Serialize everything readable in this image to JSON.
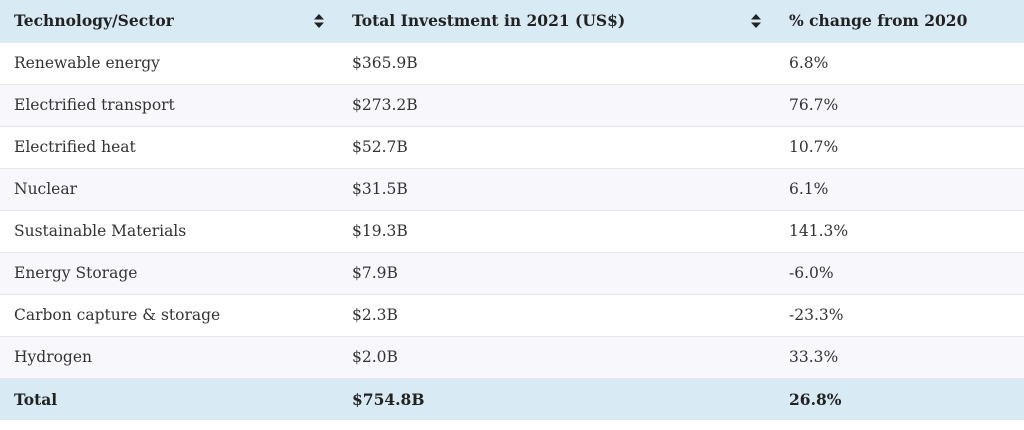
{
  "table": {
    "header": [
      "Technology/Sector",
      "Total Investment in 2021 (US$)",
      "% change from 2020"
    ],
    "rows": [
      [
        "Renewable energy",
        "$365.9B",
        "6.8%"
      ],
      [
        "Electrified transport",
        "$273.2B",
        "76.7%"
      ],
      [
        "Electrified heat",
        "$52.7B",
        "10.7%"
      ],
      [
        "Nuclear",
        "$31.5B",
        "6.1%"
      ],
      [
        "Sustainable Materials",
        "$19.3B",
        "141.3%"
      ],
      [
        "Energy Storage",
        "$7.9B",
        "-6.0%"
      ],
      [
        "Carbon capture & storage",
        "$2.3B",
        "-23.3%"
      ],
      [
        "Hydrogen",
        "$2.0B",
        "33.3%"
      ]
    ],
    "total": [
      "Total",
      "$754.8B",
      "26.8%"
    ]
  }
}
